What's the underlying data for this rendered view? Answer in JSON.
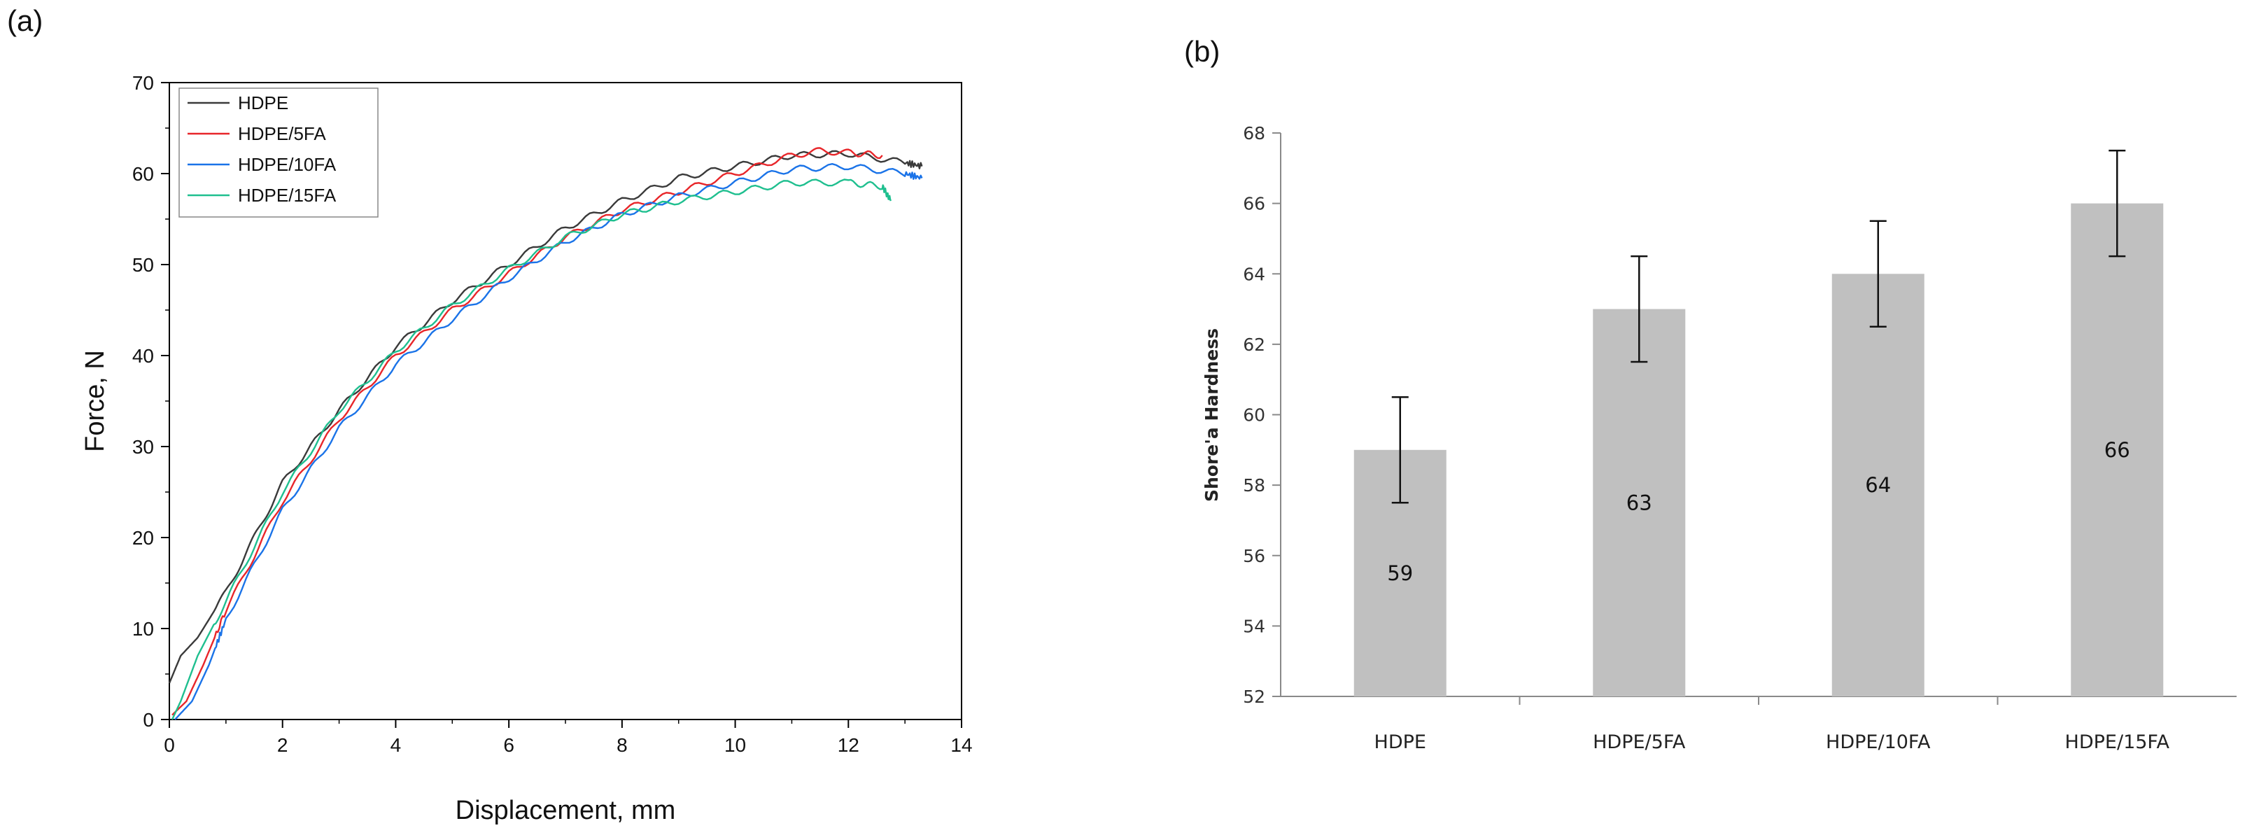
{
  "chart_data": [
    {
      "panel": "(a)",
      "type": "line",
      "xlabel": "Displacement, mm",
      "ylabel": "Force, N",
      "xlim": [
        0,
        14
      ],
      "ylim": [
        0,
        70
      ],
      "xticks": [
        "0",
        "2",
        "4",
        "6",
        "8",
        "10",
        "12",
        "14"
      ],
      "yticks": [
        "0",
        "10",
        "20",
        "30",
        "40",
        "50",
        "60",
        "70"
      ],
      "legend_position": "top-left",
      "series": [
        {
          "name": "HDPE",
          "color": "#3a3a3a",
          "x": [
            0,
            0.2,
            0.5,
            1,
            1.5,
            2,
            3,
            4,
            5,
            6,
            7,
            8,
            9,
            10,
            11,
            12,
            13,
            13.3
          ],
          "y": [
            4,
            7,
            9,
            14,
            20,
            26,
            34,
            41,
            46,
            50,
            54,
            57,
            59.5,
            60.8,
            62,
            62.2,
            61.2,
            60.8
          ]
        },
        {
          "name": "HDPE/5FA",
          "color": "#e8262a",
          "x": [
            0.05,
            0.3,
            0.6,
            1,
            2,
            3,
            4,
            5,
            6,
            7,
            8,
            9,
            10,
            11,
            11.5,
            12,
            12.6
          ],
          "y": [
            0.5,
            2,
            6,
            12,
            24,
            33,
            40,
            45,
            49,
            53,
            56,
            58,
            60,
            62,
            62.5,
            62.3,
            62
          ]
        },
        {
          "name": "HDPE/10FA",
          "color": "#1a73e8",
          "x": [
            0.1,
            0.4,
            0.7,
            1,
            2,
            3,
            4,
            5,
            6,
            7,
            8,
            9,
            10,
            11,
            12,
            13,
            13.3
          ],
          "y": [
            0,
            2,
            6,
            11,
            23,
            32,
            39,
            44,
            48.5,
            52.5,
            55.5,
            57.5,
            59,
            60.5,
            60.8,
            60,
            59.5
          ]
        },
        {
          "name": "HDPE/15FA",
          "color": "#1fbf8f",
          "x": [
            0.05,
            0.2,
            0.5,
            1,
            2,
            3,
            4,
            5,
            6,
            7,
            8,
            9,
            10,
            11,
            12,
            12.6,
            12.75
          ],
          "y": [
            0,
            2,
            7,
            13,
            25,
            34,
            40.5,
            45.5,
            49.5,
            53,
            55.5,
            57,
            58,
            59,
            59,
            58.6,
            57
          ]
        }
      ]
    },
    {
      "panel": "(b)",
      "type": "bar",
      "categories": [
        "HDPE",
        "HDPE/5FA",
        "HDPE/10FA",
        "HDPE/15FA"
      ],
      "values": [
        59,
        63,
        64,
        66
      ],
      "data_labels": [
        "59",
        "63",
        "64",
        "66"
      ],
      "error": [
        1.5,
        1.5,
        1.5,
        1.5
      ],
      "ylabel": "Shore'a Hardness",
      "ylim": [
        52,
        68
      ],
      "yticks": [
        "52",
        "54",
        "56",
        "58",
        "60",
        "62",
        "64",
        "66",
        "68"
      ],
      "bar_color": "#c0c0c0"
    }
  ]
}
